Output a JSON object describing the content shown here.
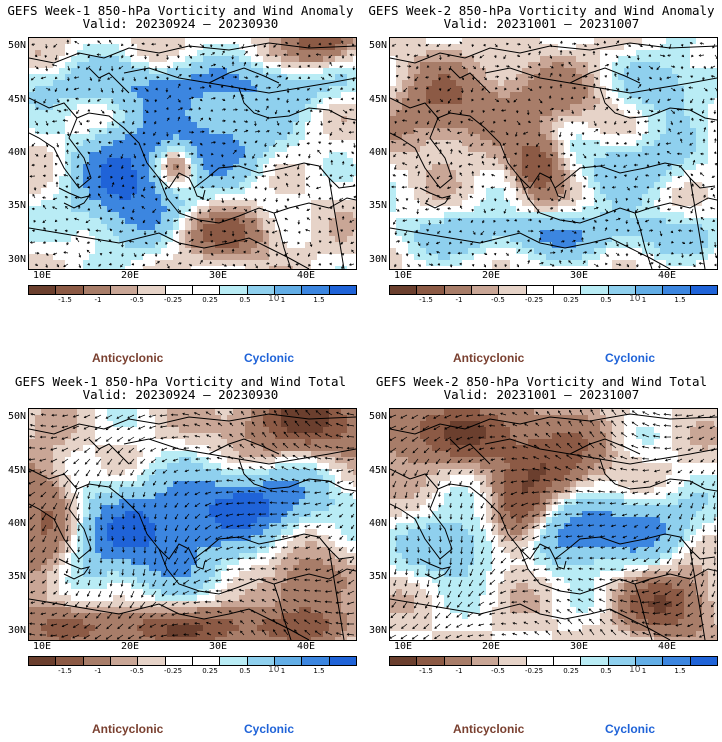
{
  "panels": [
    {
      "title": "GEFS Week-1 850-hPa Vorticity and Wind Anomaly",
      "valid": "Valid: 20230924 – 20230930",
      "mode": "anom1"
    },
    {
      "title": "GEFS Week-2 850-hPa Vorticity and Wind Anomaly",
      "valid": "Valid: 20231001 – 20231007",
      "mode": "anom2"
    },
    {
      "title": "GEFS Week-1 850-hPa Vorticity and Wind Total",
      "valid": "Valid: 20230924 – 20230930",
      "mode": "total1"
    },
    {
      "title": "GEFS Week-2 850-hPa Vorticity and Wind Total",
      "valid": "Valid: 20231001 – 20231007",
      "mode": "total2"
    }
  ],
  "axes": {
    "lat_labels": [
      "50N",
      "45N",
      "40N",
      "35N",
      "30N"
    ],
    "lon_labels": [
      "10E",
      "20E",
      "30E",
      "40E"
    ],
    "lat_range": [
      29,
      51
    ],
    "lon_range": [
      8,
      44
    ]
  },
  "colorbar": {
    "colors": [
      "#6b3f2e",
      "#8c5a45",
      "#a87d69",
      "#c9a696",
      "#e6d3c8",
      "#ffffff",
      "#ffffff",
      "#b9ecf5",
      "#8fd0ee",
      "#63aee6",
      "#3c86e0",
      "#1f63d8"
    ],
    "labels": [
      "-1.5",
      "-1",
      "-0.5",
      "-0.25",
      "0.25",
      "0.5",
      "1",
      "1.5"
    ],
    "unit": "10"
  },
  "legend": {
    "anticyclonic": "Anticyclonic",
    "cyclonic": "Cyclonic",
    "anticyclonic_color": "#7a4030",
    "cyclonic_color": "#1f63d8"
  }
}
